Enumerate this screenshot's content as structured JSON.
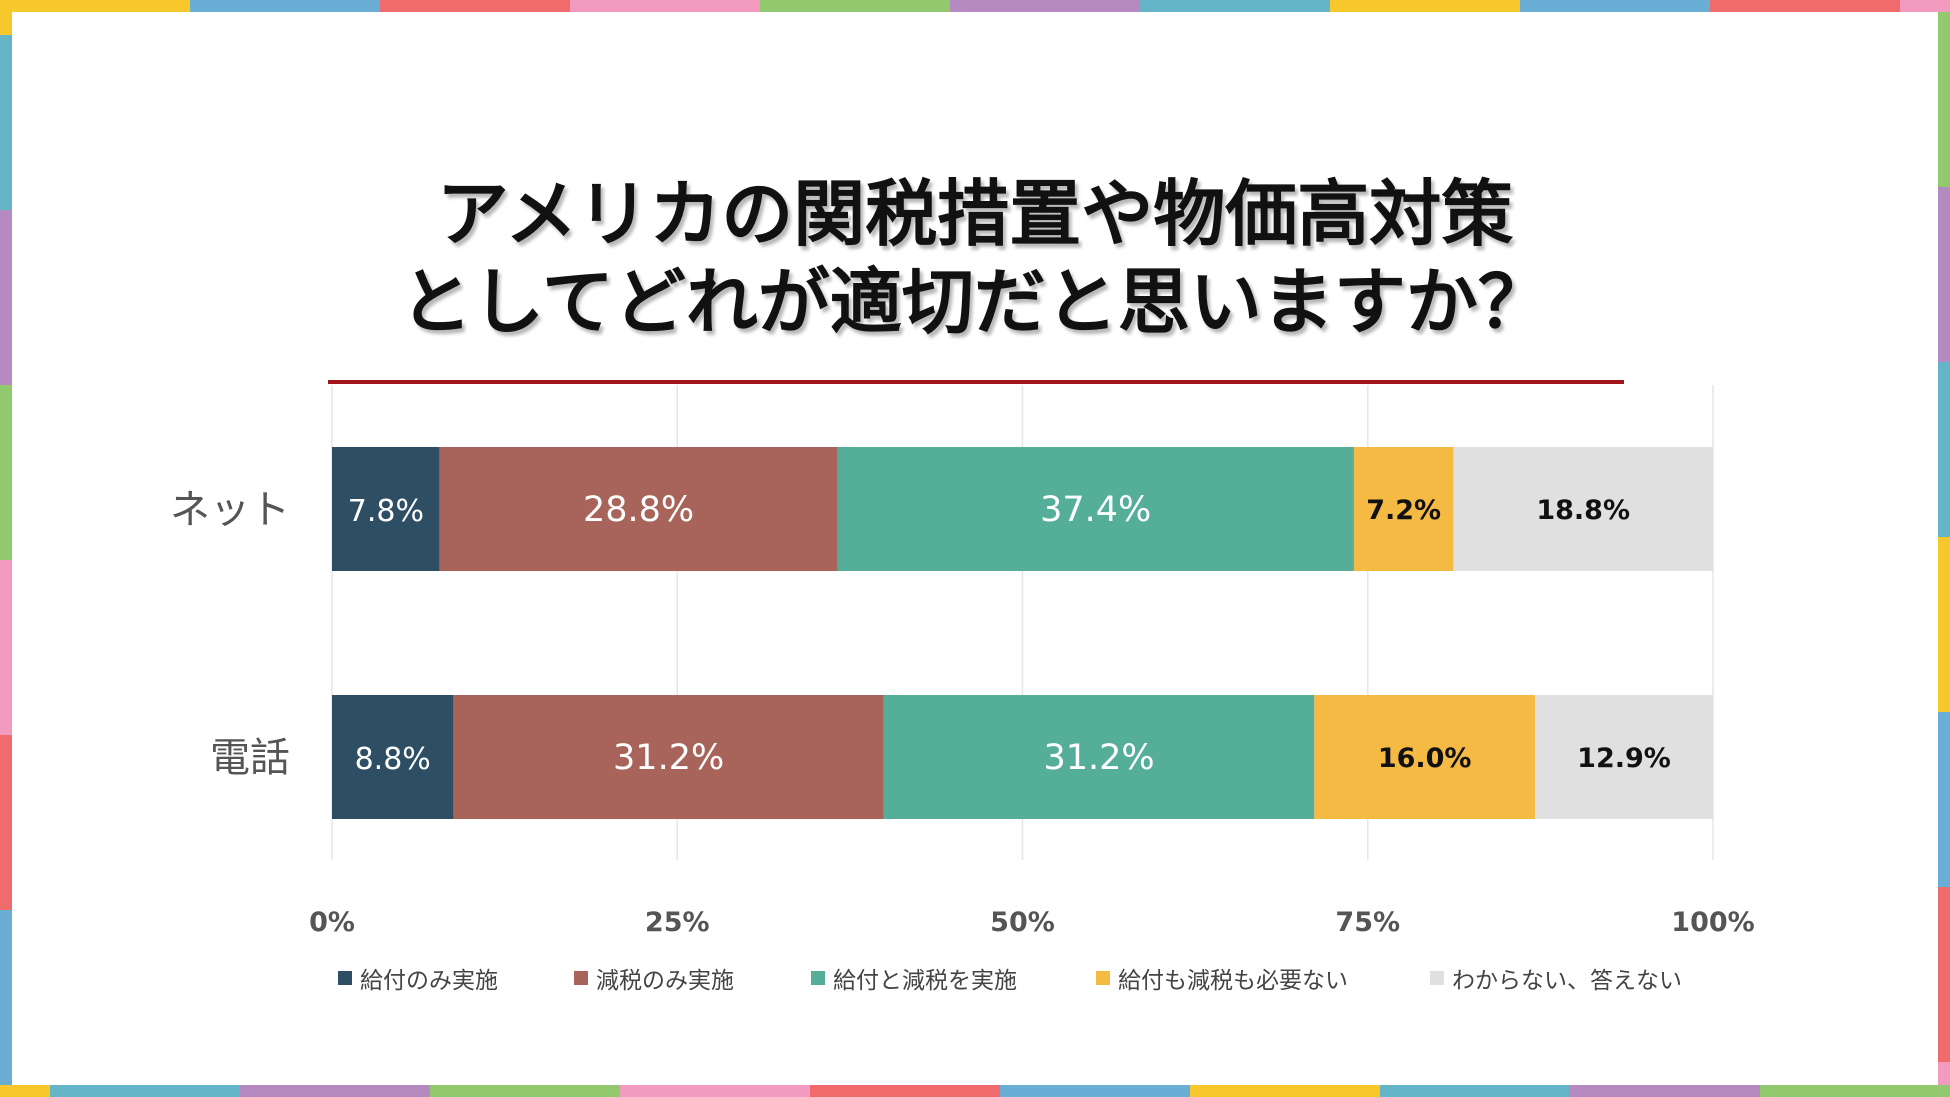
{
  "title": {
    "line1": "アメリカの関税措置や物価高対策",
    "line2": "としてどれが適切だと思いますか？"
  },
  "colors": {
    "title_rule": "#a3141c",
    "border_palette": [
      "#f7c82b",
      "#6aaed6",
      "#f06b6b",
      "#f29bbf",
      "#93c96e",
      "#b58ac0",
      "#63b5c7"
    ]
  },
  "chart_data": {
    "type": "bar",
    "orientation": "horizontal",
    "stacked": "percent",
    "categories": [
      "ネット",
      "電話"
    ],
    "series": [
      {
        "name": "給付のみ実施",
        "color": "#2d4e63",
        "label_color": "#ffffff",
        "values": [
          7.8,
          8.8
        ],
        "labels": [
          "7.8%",
          "8.8%"
        ]
      },
      {
        "name": "減税のみ実施",
        "color": "#a8635a",
        "label_color": "#ffffff",
        "values": [
          28.8,
          31.2
        ],
        "labels": [
          "28.8%",
          "31.2%"
        ]
      },
      {
        "name": "給付と減税を実施",
        "color": "#55ae98",
        "label_color": "#ffffff",
        "values": [
          37.4,
          31.2
        ],
        "labels": [
          "37.4%",
          "31.2%"
        ]
      },
      {
        "name": "給付も減税も必要ない",
        "color": "#f4ba44",
        "label_color": "#111111",
        "values": [
          7.2,
          16.0
        ],
        "labels": [
          "7.2%",
          "16.0%"
        ]
      },
      {
        "name": "わからない、答えない",
        "color": "#e0e0e0",
        "label_color": "#111111",
        "values": [
          18.8,
          12.9
        ],
        "labels": [
          "18.8%",
          "12.9%"
        ]
      }
    ],
    "xaxis": {
      "ticks": [
        "0%",
        "25%",
        "50%",
        "75%",
        "100%"
      ],
      "range": [
        0,
        100
      ]
    },
    "grid": true,
    "legend": "bottom"
  }
}
